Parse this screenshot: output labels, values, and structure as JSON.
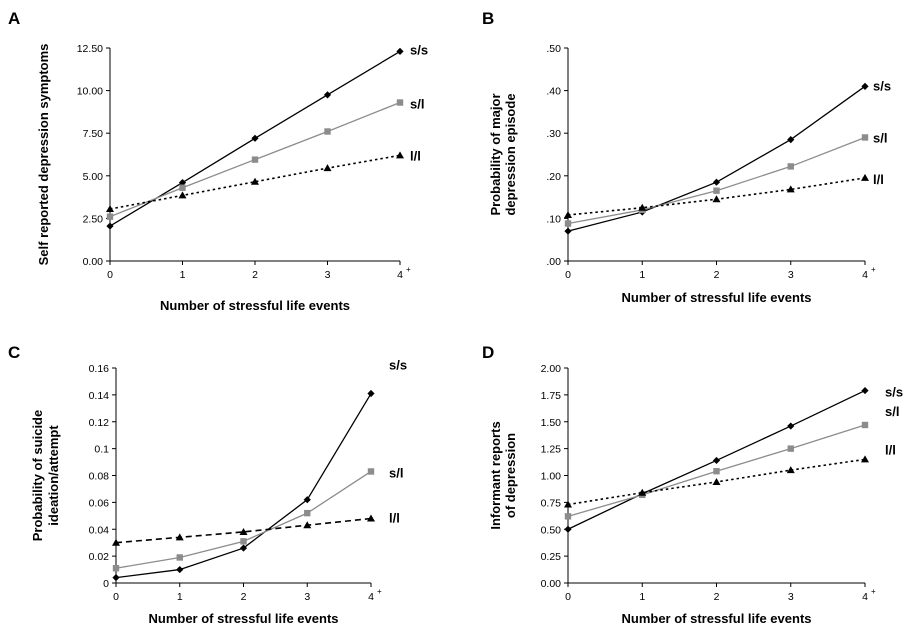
{
  "figure": {
    "title": "",
    "colors": {
      "s_s": "#000000",
      "s_l": "#8c8c8c",
      "l_l": "#000000",
      "axis": "#000000"
    }
  },
  "chart_data": [
    {
      "type": "line",
      "panel": "A",
      "xlabel": "Number of stressful life events",
      "ylabel": "Self reported depression symptoms",
      "x": [
        0,
        1,
        2,
        3,
        4
      ],
      "x_ticks": [
        "0",
        "1",
        "2",
        "3",
        "4"
      ],
      "last_tick_superscript": "+",
      "ylim": [
        0,
        12.5
      ],
      "y_ticks": [
        "0.00",
        "2.50",
        "5.00",
        "7.50",
        "10.00",
        "12.50"
      ],
      "grid": false,
      "legend": "direct labels at line ends",
      "series": [
        {
          "name": "s/s",
          "marker": "diamond",
          "line": "solid",
          "color": "#000000",
          "values": [
            2.05,
            4.6,
            7.2,
            9.75,
            12.3
          ]
        },
        {
          "name": "s/l",
          "marker": "square",
          "line": "solid",
          "color": "#8c8c8c",
          "values": [
            2.6,
            4.3,
            5.95,
            7.6,
            9.3
          ]
        },
        {
          "name": "l/l",
          "marker": "triangle",
          "line": "dotted",
          "color": "#000000",
          "values": [
            3.05,
            3.85,
            4.65,
            5.45,
            6.2
          ]
        }
      ]
    },
    {
      "type": "line",
      "panel": "B",
      "xlabel": "Number of stressful life events",
      "ylabel": "Probability of major depression episode",
      "ylabel_lines": [
        "Probability of major",
        "depression episode"
      ],
      "x": [
        0,
        1,
        2,
        3,
        4
      ],
      "x_ticks": [
        "0",
        "1",
        "2",
        "3",
        "4"
      ],
      "last_tick_superscript": "+",
      "ylim": [
        0,
        0.5
      ],
      "y_ticks": [
        ".00",
        ".10",
        ".20",
        ".30",
        ".40",
        ".50"
      ],
      "grid": false,
      "legend": "direct labels at line ends",
      "series": [
        {
          "name": "s/s",
          "marker": "diamond",
          "line": "solid",
          "color": "#000000",
          "values": [
            0.07,
            0.115,
            0.185,
            0.285,
            0.41
          ]
        },
        {
          "name": "s/l",
          "marker": "square",
          "line": "solid",
          "color": "#8c8c8c",
          "values": [
            0.088,
            0.12,
            0.165,
            0.222,
            0.29
          ]
        },
        {
          "name": "l/l",
          "marker": "triangle",
          "line": "dotted",
          "color": "#000000",
          "values": [
            0.108,
            0.125,
            0.145,
            0.168,
            0.195
          ]
        }
      ]
    },
    {
      "type": "line",
      "panel": "C",
      "xlabel": "Number of stressful life events",
      "ylabel": "Probability of suicide ideation/attempt",
      "ylabel_lines": [
        "Probability of suicide",
        "ideation/attempt"
      ],
      "x": [
        0,
        1,
        2,
        3,
        4
      ],
      "x_ticks": [
        "0",
        "1",
        "2",
        "3",
        "4"
      ],
      "last_tick_superscript": "+",
      "ylim": [
        0,
        0.16
      ],
      "y_ticks": [
        "0",
        "0.02",
        "0.04",
        "0.06",
        "0.08",
        "0.1",
        "0.12",
        "0.14",
        "0.16"
      ],
      "grid": false,
      "legend": "direct labels at line ends",
      "series": [
        {
          "name": "s/s",
          "marker": "diamond",
          "line": "solid",
          "color": "#000000",
          "values": [
            0.004,
            0.01,
            0.026,
            0.062,
            0.141
          ]
        },
        {
          "name": "s/l",
          "marker": "square",
          "line": "solid",
          "color": "#8c8c8c",
          "values": [
            0.011,
            0.019,
            0.031,
            0.052,
            0.083
          ]
        },
        {
          "name": "l/l",
          "marker": "triangle",
          "line": "dashed",
          "color": "#000000",
          "values": [
            0.03,
            0.034,
            0.038,
            0.043,
            0.048
          ]
        }
      ]
    },
    {
      "type": "line",
      "panel": "D",
      "xlabel": "Number of stressful life events",
      "ylabel": "Informant reports of depression",
      "ylabel_lines": [
        "Informant reports",
        "of depression"
      ],
      "x": [
        0,
        1,
        2,
        3,
        4
      ],
      "x_ticks": [
        "0",
        "1",
        "2",
        "3",
        "4"
      ],
      "last_tick_superscript": "+",
      "ylim": [
        0,
        2.0
      ],
      "y_ticks": [
        "0.00",
        "0.25",
        "0.50",
        "0.75",
        "1.00",
        "1.25",
        "1.50",
        "1.75",
        "2.00"
      ],
      "grid": false,
      "legend": "direct labels at line ends",
      "series": [
        {
          "name": "s/s",
          "marker": "diamond",
          "line": "solid",
          "color": "#000000",
          "values": [
            0.5,
            0.83,
            1.14,
            1.46,
            1.79
          ]
        },
        {
          "name": "s/l",
          "marker": "square",
          "line": "solid",
          "color": "#8c8c8c",
          "values": [
            0.62,
            0.82,
            1.04,
            1.25,
            1.47
          ]
        },
        {
          "name": "l/l",
          "marker": "triangle",
          "line": "dotted",
          "color": "#000000",
          "values": [
            0.73,
            0.84,
            0.94,
            1.05,
            1.15
          ]
        }
      ]
    }
  ]
}
